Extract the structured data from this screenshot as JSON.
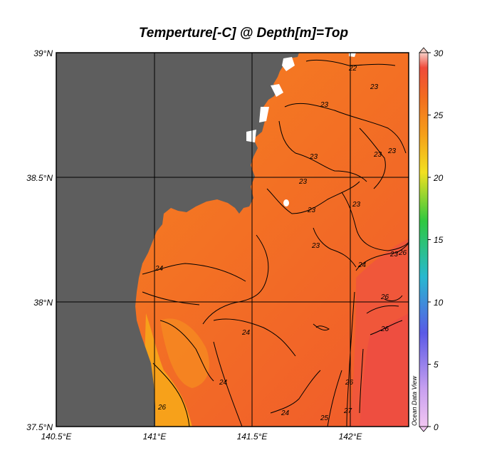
{
  "title": "Temperture[-C] @ Depth[m]=Top",
  "watermark": "Ocean Data View",
  "lon_ticks": [
    "140.5°E",
    "141°E",
    "141.5°E",
    "142°E"
  ],
  "lat_ticks": [
    "39°N",
    "38.5°N",
    "38°N",
    "37.5°N"
  ],
  "colorbar": {
    "min": 0,
    "max": 30,
    "ticks": [
      "30",
      "25",
      "20",
      "15",
      "10",
      "5",
      "0"
    ]
  },
  "colors": {
    "land": "#5e5e5e",
    "grid": "#000000",
    "water_core": "#f36a26",
    "water_north": "#f5861f",
    "warm_southeast": "#f0573a",
    "cool_coast": "#f7a11a"
  },
  "contour_labels": [
    "22",
    "23",
    "23",
    "23",
    "23",
    "23",
    "23",
    "23",
    "23",
    "23",
    "24",
    "24",
    "24",
    "24",
    "24",
    "25",
    "26",
    "26",
    "26",
    "26",
    "27",
    "23",
    "26"
  ]
}
